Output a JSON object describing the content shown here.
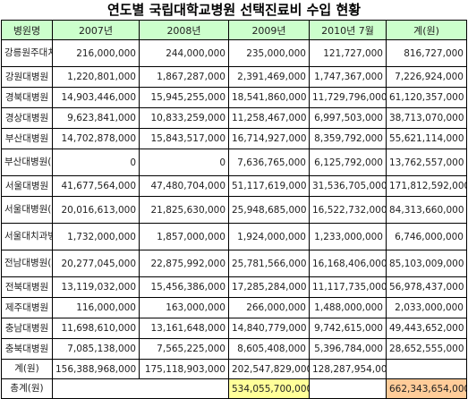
{
  "title": "연도별 국립대학교병원 선택진료비 수입 현황",
  "headers": [
    "병원명",
    "2007년",
    "2008년",
    "2009년",
    "2010년 7월",
    "계(원)"
  ],
  "rows": [
    {
      "name": "강릉원주대치과병원",
      "cells": [
        "216,000,000",
        "244,000,000",
        "235,000,000",
        "121,727,000",
        "816,727,000"
      ]
    },
    {
      "name": "강원대병원",
      "cells": [
        "1,220,801,000",
        "1,867,287,000",
        "2,391,469,000",
        "1,747,367,000",
        "7,226,924,000"
      ]
    },
    {
      "name": "경북대병원",
      "cells": [
        "14,903,446,000",
        "15,945,255,000",
        "18,541,860,000",
        "11,729,796,000",
        "61,120,357,000"
      ]
    },
    {
      "name": "경상대병원",
      "cells": [
        "9,623,841,000",
        "10,833,259,000",
        "11,258,467,000",
        "6,997,503,000",
        "38,713,070,000"
      ]
    },
    {
      "name": "부산대병원",
      "cells": [
        "14,702,878,000",
        "15,843,517,000",
        "16,714,927,000",
        "8,359,792,000",
        "55,621,114,000"
      ]
    },
    {
      "name": "부산대병원(양산)",
      "cells": [
        "0",
        "0",
        "7,636,765,000",
        "6,125,792,000",
        "13,762,557,000"
      ]
    },
    {
      "name": "서울대병원",
      "cells": [
        "41,677,564,000",
        "47,480,704,000",
        "51,117,619,000",
        "31,536,705,000",
        "171,812,592,000"
      ]
    },
    {
      "name": "서울대병원(분당)",
      "cells": [
        "20,016,613,000",
        "21,825,630,000",
        "25,948,685,000",
        "16,522,732,000",
        "84,313,660,000"
      ]
    },
    {
      "name": "서울대치과병원",
      "cells": [
        "1,732,000,000",
        "1,857,000,000",
        "1,924,000,000",
        "1,233,000,000",
        "6,746,000,000"
      ]
    },
    {
      "name": "전남대병원(화순포함)",
      "cells": [
        "20,277,045,000",
        "22,875,992,000",
        "25,781,566,000",
        "16,168,406,000",
        "85,103,009,000"
      ]
    },
    {
      "name": "전북대병원",
      "cells": [
        "13,119,032,000",
        "15,456,386,000",
        "17,285,284,000",
        "11,117,735,000",
        "56,978,437,000"
      ]
    },
    {
      "name": "제주대병원",
      "cells": [
        "116,000,000",
        "163,000,000",
        "266,000,000",
        "1,488,000,000",
        "2,033,000,000"
      ]
    },
    {
      "name": "충남대병원",
      "cells": [
        "11,698,610,000",
        "13,161,648,000",
        "14,840,779,000",
        "9,742,615,000",
        "49,443,652,000"
      ]
    },
    {
      "name": "충북대병원",
      "cells": [
        "7,085,138,000",
        "7,565,225,000",
        "8,605,408,000",
        "5,396,784,000",
        "28,652,555,000"
      ]
    }
  ],
  "sum_row": {
    "name": "계(원)",
    "cells": [
      "156,388,968,000",
      "175,118,903,000",
      "202,547,829,000",
      "128,287,954,000"
    ]
  },
  "total_row": {
    "name": "총계(원)",
    "mid_value": "534,055,700,000",
    "grand_value": "662,343,654,000"
  },
  "colors": {
    "header_bg": "#ccffcc",
    "highlight_yellow": "#ffff99",
    "highlight_peach": "#ffcc99"
  }
}
